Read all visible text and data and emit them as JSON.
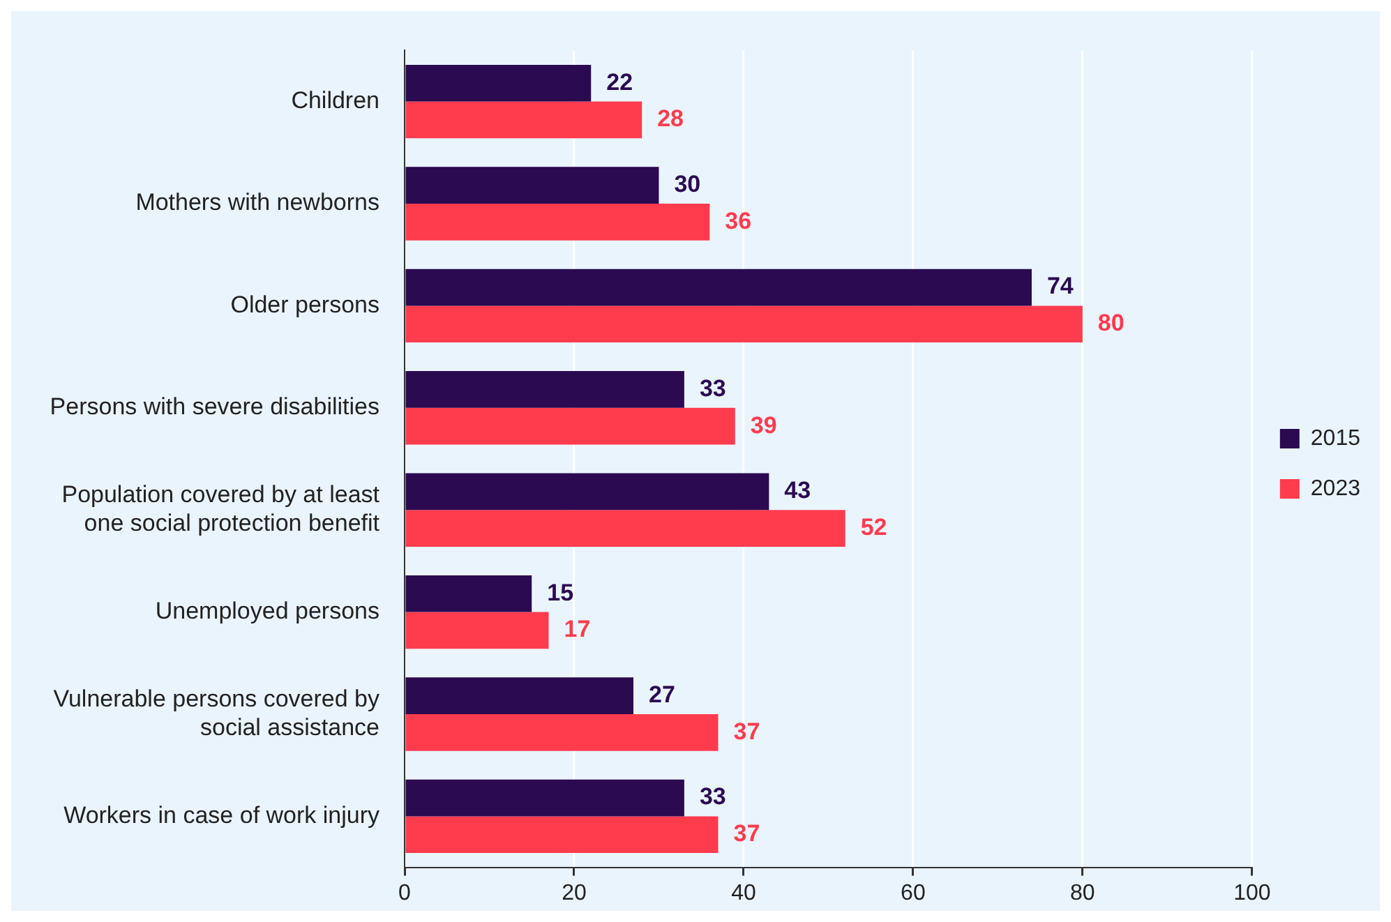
{
  "chart_data": {
    "type": "bar",
    "orientation": "horizontal",
    "categories": [
      "Children",
      "Mothers with newborns",
      "Older persons",
      "Persons with severe disabilities",
      "Population covered by at least one social protection benefit",
      "Unemployed persons",
      "Vulnerable persons covered by social assistance",
      "Workers in case of work injury"
    ],
    "series": [
      {
        "name": "2015",
        "color": "#2b0a52",
        "values": [
          22,
          30,
          74,
          33,
          43,
          15,
          27,
          33
        ]
      },
      {
        "name": "2023",
        "color": "#ff3b4e",
        "values": [
          28,
          36,
          80,
          39,
          52,
          17,
          37,
          37
        ]
      }
    ],
    "xlim": [
      0,
      100
    ],
    "xticks": [
      0,
      20,
      40,
      60,
      80,
      100
    ],
    "grid": "x",
    "legend": "right",
    "data_labels": true
  }
}
